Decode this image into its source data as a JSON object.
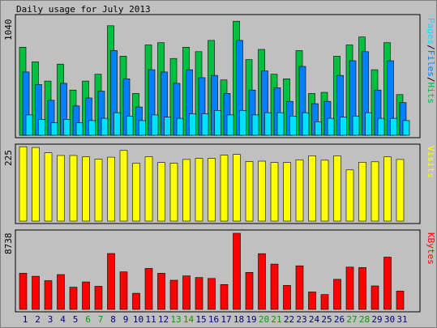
{
  "title": "Daily usage for July 2013",
  "colors": {
    "background": "#c0c0c0",
    "hits": "#00c040",
    "files": "#0080ff",
    "pages": "#00e0ff",
    "visits": "#ffff00",
    "kbytes": "#ff0000",
    "weekday_label": "#000080",
    "weekend_label": "#00a000"
  },
  "chart_data": [
    {
      "type": "bar",
      "panel": "top",
      "ytick_label": "1040",
      "ylim": [
        0,
        1040
      ],
      "legend": {
        "pages": "Pages",
        "sep1": "/",
        "files": "Files",
        "sep2": "/",
        "hits": "Hits"
      },
      "series": [
        {
          "name": "Hits",
          "values": [
            780,
            650,
            480,
            630,
            400,
            480,
            540,
            970,
            700,
            370,
            800,
            820,
            680,
            780,
            740,
            840,
            490,
            1010,
            670,
            760,
            540,
            500,
            750,
            370,
            380,
            700,
            800,
            870,
            580,
            820,
            360
          ]
        },
        {
          "name": "Files",
          "values": [
            560,
            450,
            310,
            460,
            260,
            330,
            390,
            750,
            500,
            250,
            580,
            560,
            460,
            580,
            510,
            530,
            370,
            840,
            400,
            570,
            420,
            300,
            610,
            280,
            300,
            530,
            660,
            740,
            400,
            660,
            290
          ]
        },
        {
          "name": "Pages",
          "values": [
            180,
            140,
            110,
            140,
            110,
            130,
            150,
            200,
            170,
            130,
            180,
            160,
            150,
            190,
            190,
            220,
            180,
            220,
            180,
            200,
            200,
            170,
            200,
            120,
            150,
            160,
            170,
            200,
            150,
            150,
            130
          ]
        }
      ]
    },
    {
      "type": "bar",
      "panel": "middle",
      "ytick_label": "225",
      "ylim": [
        0,
        225
      ],
      "legend": {
        "visits": "Visits"
      },
      "series": [
        {
          "name": "Visits",
          "values": [
            222,
            220,
            204,
            196,
            196,
            192,
            185,
            191,
            211,
            173,
            192,
            175,
            173,
            184,
            187,
            187,
            197,
            199,
            178,
            179,
            175,
            175,
            183,
            195,
            182,
            195,
            153,
            176,
            177,
            192,
            184
          ]
        }
      ]
    },
    {
      "type": "bar",
      "panel": "bottom",
      "ytick_label": "8738",
      "ylim": [
        0,
        8738
      ],
      "legend": {
        "kbytes": "KBytes"
      },
      "series": [
        {
          "name": "KBytes",
          "values": [
            4150,
            3800,
            3300,
            4000,
            2550,
            3150,
            2650,
            6410,
            4300,
            1850,
            4700,
            4150,
            3350,
            3850,
            3650,
            3550,
            2850,
            8738,
            4250,
            6400,
            5200,
            2750,
            5000,
            2000,
            1700,
            3450,
            4850,
            4800,
            2700,
            6000,
            2100
          ]
        }
      ]
    }
  ],
  "days": [
    "1",
    "2",
    "3",
    "4",
    "5",
    "6",
    "7",
    "8",
    "9",
    "10",
    "11",
    "12",
    "13",
    "14",
    "15",
    "16",
    "17",
    "18",
    "19",
    "20",
    "21",
    "22",
    "23",
    "24",
    "25",
    "26",
    "27",
    "28",
    "29",
    "30",
    "31"
  ],
  "weekend_days": [
    6,
    7,
    13,
    14,
    20,
    21,
    27,
    28
  ]
}
